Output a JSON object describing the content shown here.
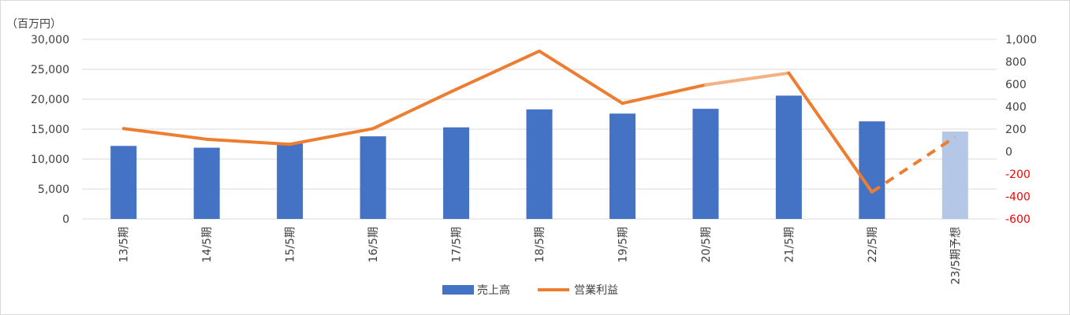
{
  "chart_data": {
    "type": "bar",
    "unit_label": "（百万円）",
    "categories": [
      "13/5期",
      "14/5期",
      "15/5期",
      "16/5期",
      "17/5期",
      "18/5期",
      "19/5期",
      "20/5期",
      "21/5期",
      "22/5期",
      "23/5期予想"
    ],
    "series": [
      {
        "name": "売上高",
        "type": "bar",
        "axis": "left",
        "values": [
          12200,
          11900,
          12600,
          13800,
          15300,
          18300,
          17600,
          18400,
          20600,
          16300,
          14600
        ],
        "forecast_from_index": 10
      },
      {
        "name": "営業利益",
        "type": "line",
        "axis": "right",
        "values": [
          205,
          110,
          65,
          205,
          555,
          895,
          430,
          595,
          700,
          -360,
          130
        ],
        "forecast_segment_from_index": 9
      }
    ],
    "y_left": {
      "min": 0,
      "max": 30000,
      "ticks": [
        "0",
        "5,000",
        "10,000",
        "15,000",
        "20,000",
        "25,000",
        "30,000"
      ],
      "tick_values": [
        0,
        5000,
        10000,
        15000,
        20000,
        25000,
        30000
      ]
    },
    "y_right": {
      "min": -600,
      "max": 1000,
      "ticks": [
        "-600",
        "-400",
        "-200",
        "0",
        "200",
        "400",
        "600",
        "800",
        "1,000"
      ],
      "tick_values": [
        -600,
        -400,
        -200,
        0,
        200,
        400,
        600,
        800,
        1000
      ]
    },
    "grid": true,
    "legend_position": "bottom",
    "colors": {
      "bar": "#4472c4",
      "bar_forecast": "#b4c7e7",
      "line": "#ed7d31",
      "line_light": "#f4b183",
      "negative_tick": "#ff0000",
      "grid": "#d9d9d9",
      "text": "#404040"
    }
  }
}
